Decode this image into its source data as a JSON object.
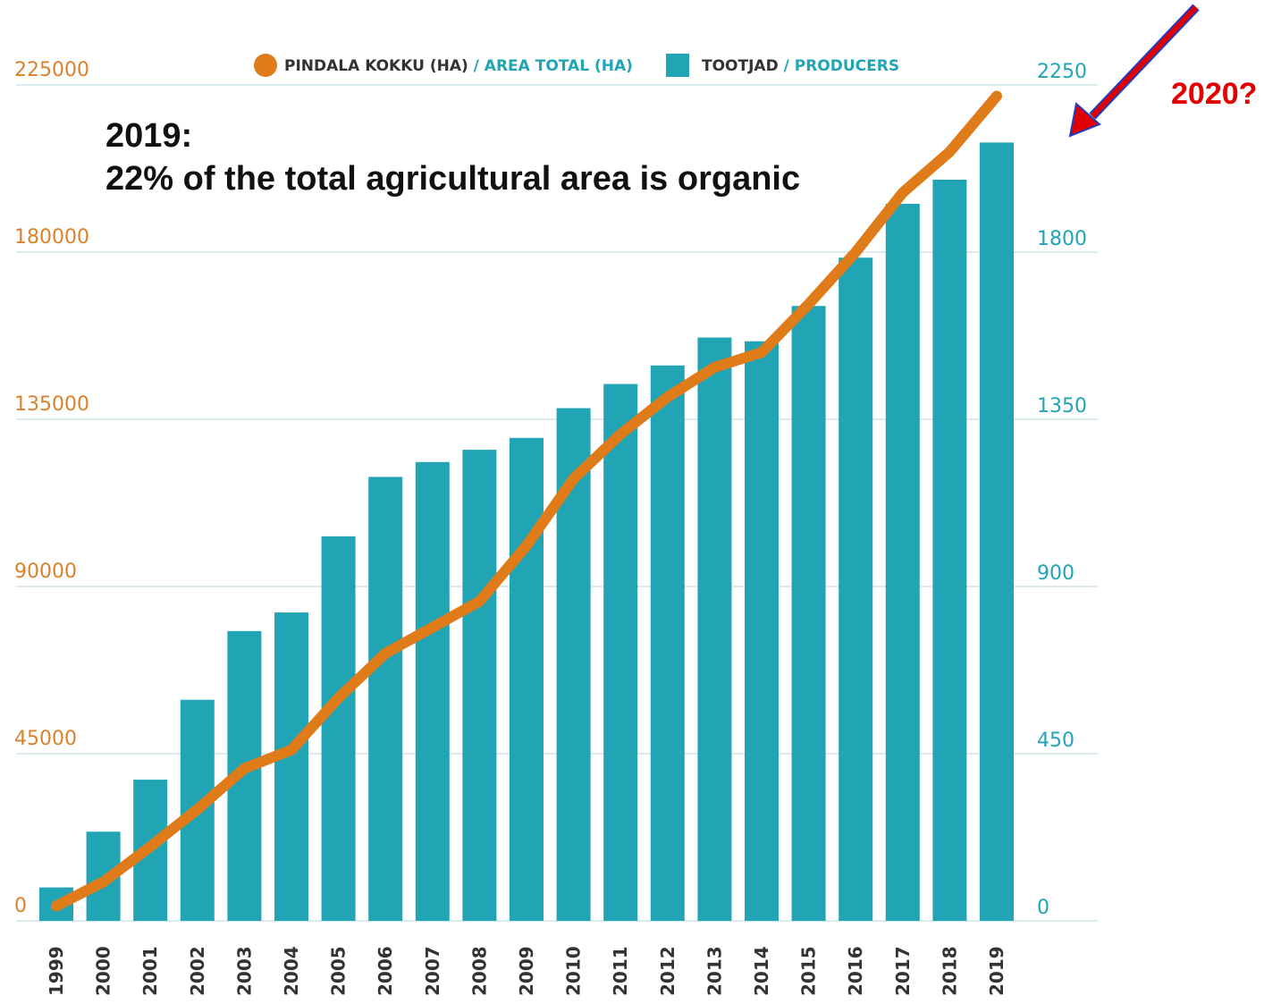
{
  "chart_data": {
    "type": "bar+line",
    "categories": [
      "1999",
      "2000",
      "2001",
      "2002",
      "2003",
      "2004",
      "2005",
      "2006",
      "2007",
      "2008",
      "2009",
      "2010",
      "2011",
      "2012",
      "2013",
      "2014",
      "2015",
      "2016",
      "2017",
      "2018",
      "2019"
    ],
    "series": [
      {
        "name_main": "PINDALA KOKKU (HA)",
        "name_sep": " / ",
        "name_alt": "AREA TOTAL (HA)",
        "type": "line",
        "axis": "left",
        "color": "#e07b1a",
        "values": [
          4000,
          10500,
          20000,
          30000,
          41000,
          46000,
          60000,
          72000,
          79000,
          86000,
          101000,
          119000,
          131000,
          141000,
          149000,
          153000,
          166000,
          180000,
          196000,
          207000,
          222000
        ]
      },
      {
        "name_main": "TOOTJAD",
        "name_sep": " / ",
        "name_alt": "PRODUCERS",
        "type": "bar",
        "axis": "right",
        "color": "#21a4b4",
        "values": [
          90,
          240,
          380,
          595,
          780,
          830,
          1035,
          1195,
          1235,
          1268,
          1300,
          1380,
          1445,
          1495,
          1570,
          1560,
          1655,
          1785,
          1930,
          1995,
          2095
        ]
      }
    ],
    "y_left": {
      "ticks": [
        0,
        45000,
        90000,
        135000,
        180000,
        225000
      ],
      "range": [
        0,
        225000
      ],
      "color": "#d9822b"
    },
    "y_right": {
      "ticks": [
        0,
        450,
        900,
        1350,
        1800,
        2250
      ],
      "range": [
        0,
        2250
      ],
      "color": "#21a4b4"
    },
    "grid": true,
    "legend_position": "top"
  },
  "annotation": {
    "line1": "2019:",
    "line2": "22% of the total agricultural area is organic"
  },
  "question_label": "2020?",
  "colors": {
    "legend_alt_text": "#21a4b4",
    "legend_main_text": "#333333",
    "arrow_fill": "#e00000",
    "arrow_outline": "#1f3fbf",
    "gridline": "#cfe3e8"
  }
}
